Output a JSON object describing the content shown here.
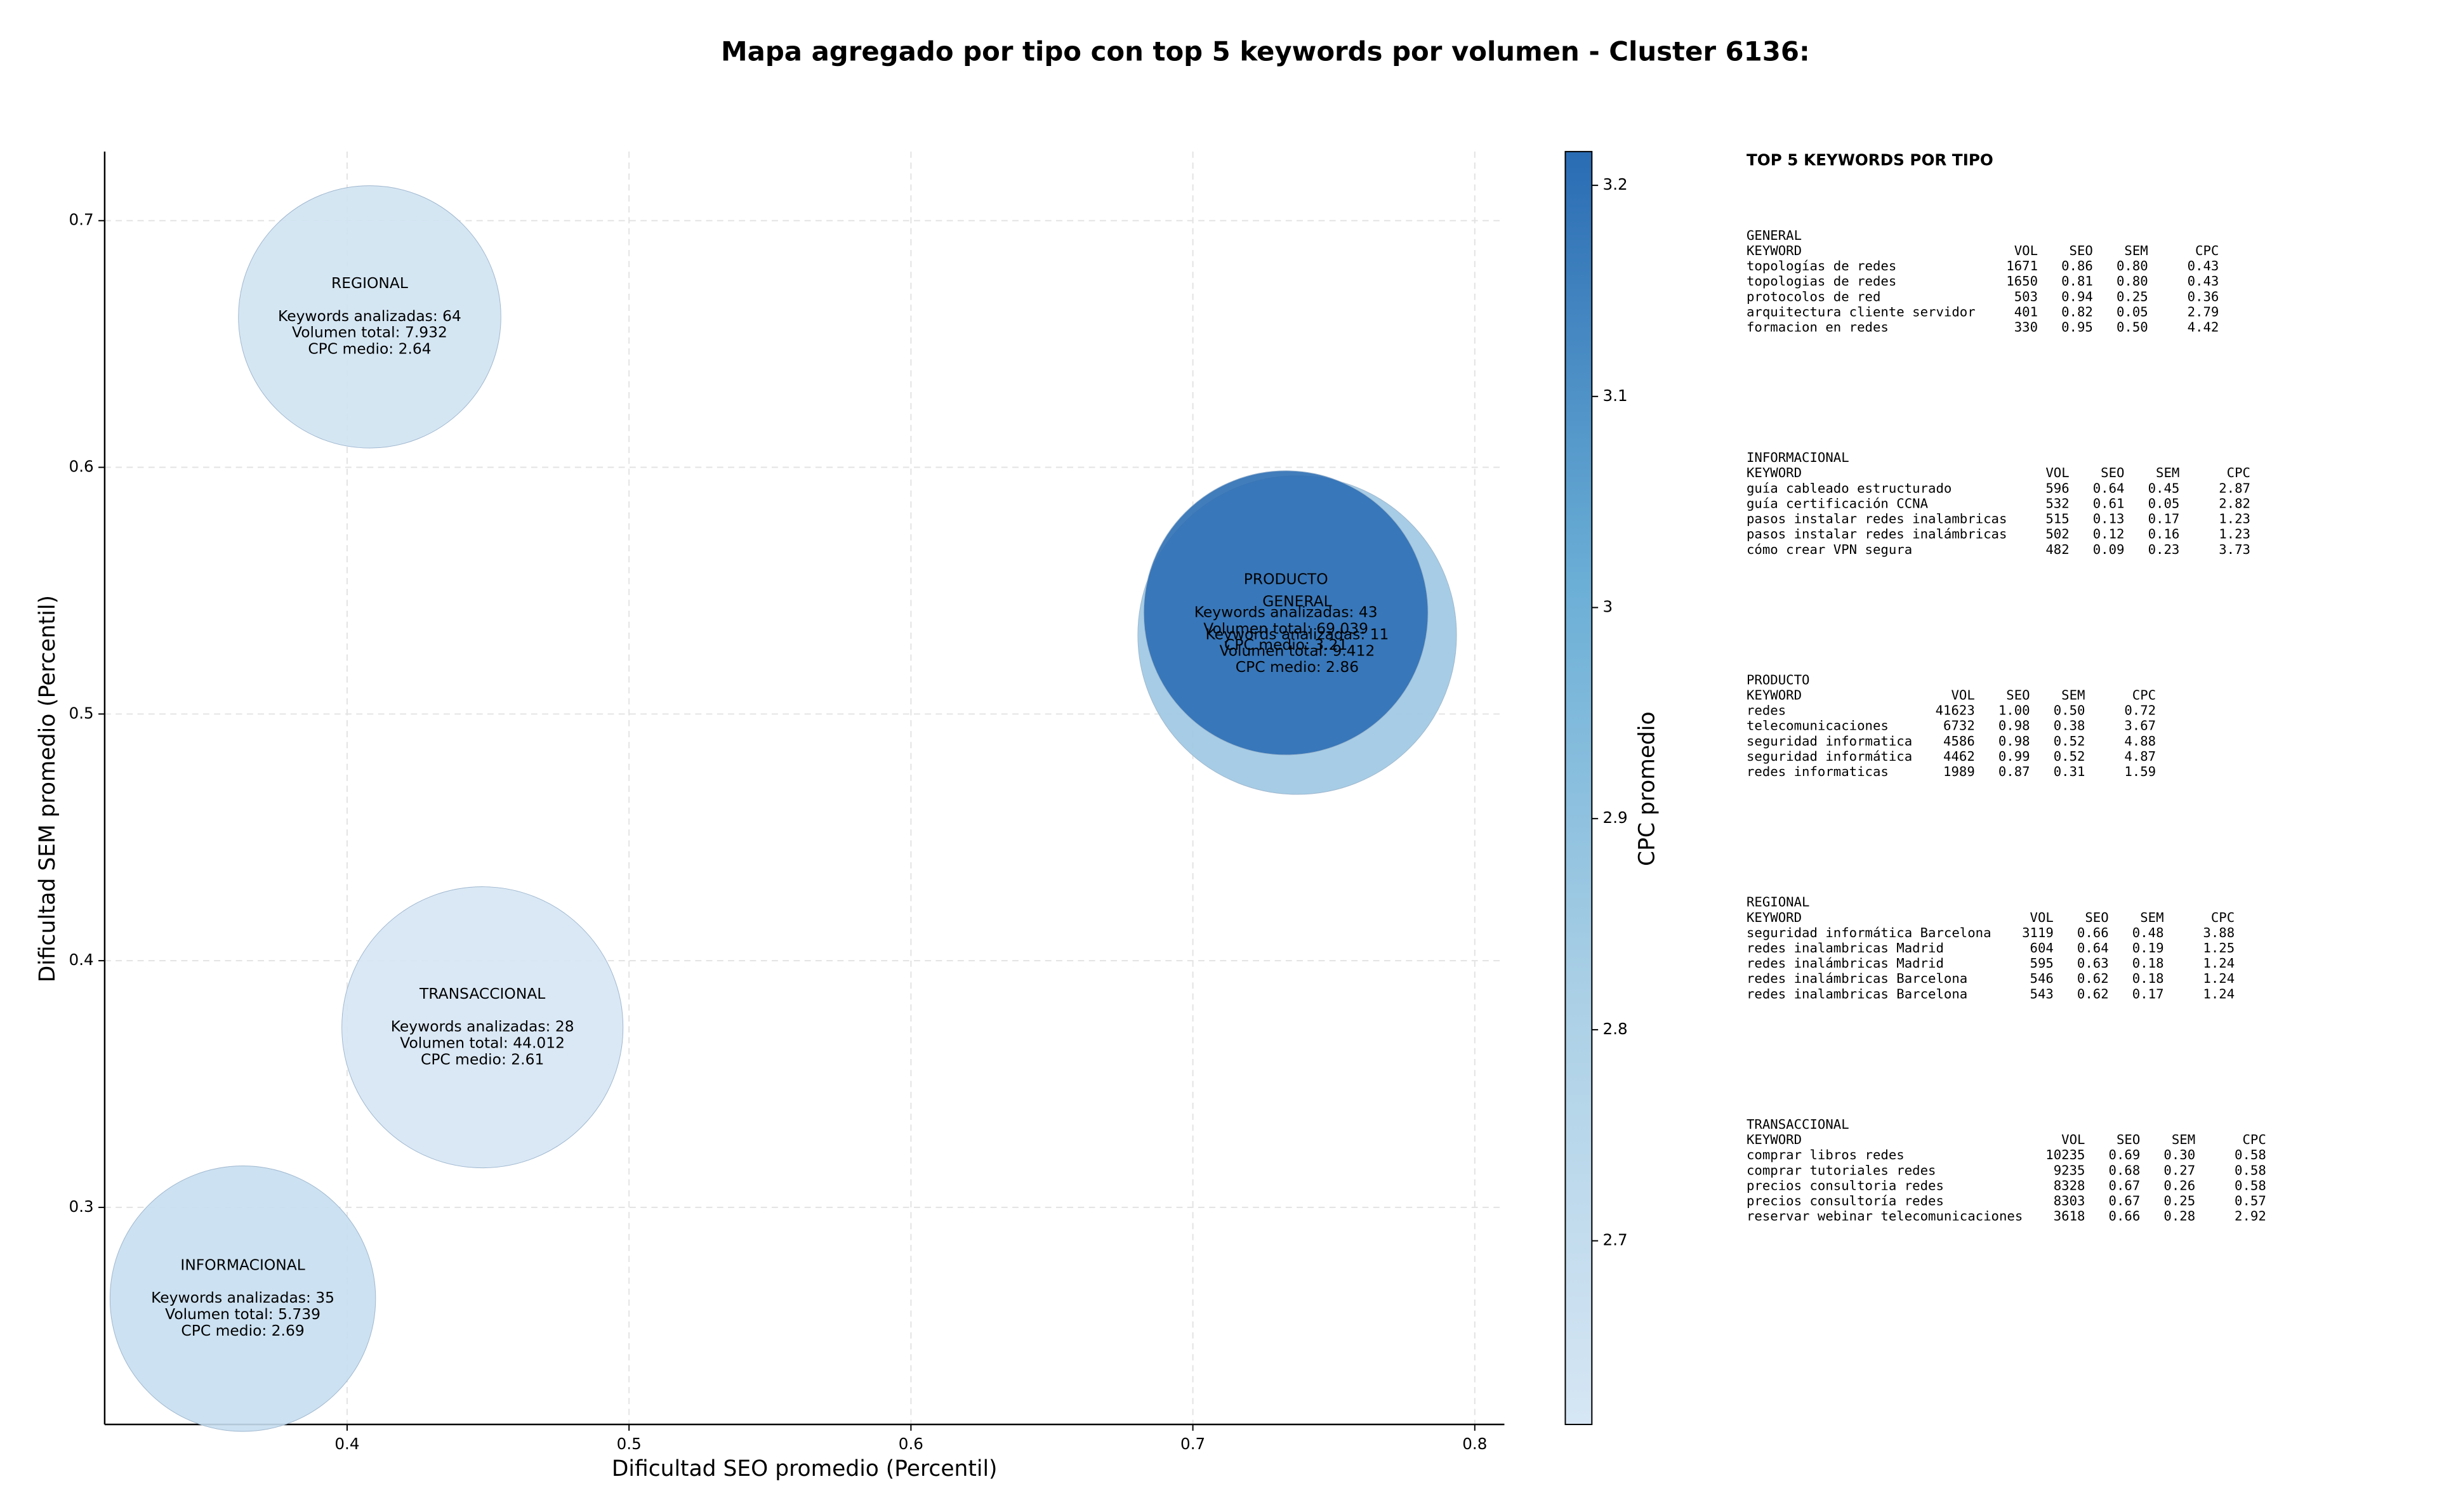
{
  "chart_data": {
    "type": "bubble",
    "title": "Mapa agregado por tipo con top 5 keywords por volumen - Cluster 6136:",
    "x_label": "Dificultad SEO promedio (Percentil)",
    "y_label": "Dificultad SEM promedio (Percentil)",
    "colorbar_label": "CPC promedio",
    "xlim": [
      0.314,
      0.8105
    ],
    "xticks": [
      0.4,
      0.5,
      0.6,
      0.7,
      0.8
    ],
    "ylim": [
      0.212,
      0.728
    ],
    "yticks": [
      0.3,
      0.4,
      0.5,
      0.6,
      0.7
    ],
    "clim": [
      2.613,
      3.216
    ],
    "cticks": [
      2.7,
      2.8,
      2.9,
      3.0,
      3.1,
      3.2
    ],
    "colormap": [
      "#d6e6f4",
      "#abd0e6",
      "#6aaed6",
      "#2a6cb3"
    ],
    "grid": true,
    "points": {
      "x": [
        0.737,
        0.363,
        0.733,
        0.408,
        0.448
      ],
      "y": [
        0.532,
        0.263,
        0.541,
        0.661,
        0.373
      ],
      "sizes": [
        102,
        85,
        91,
        84,
        90
      ],
      "cpc": [
        2.86,
        2.69,
        3.21,
        2.64,
        2.61
      ],
      "labels": [
        [
          "GENERAL",
          "Keywords analizadas: 11",
          "Volumen total: 9.412",
          "CPC medio: 2.86"
        ],
        [
          "INFORMACIONAL",
          "Keywords analizadas: 35",
          "Volumen total: 5.739",
          "CPC medio: 2.69"
        ],
        [
          "PRODUCTO",
          "Keywords analizadas: 43",
          "Volumen total: 69.039",
          "CPC medio: 3.21"
        ],
        [
          "REGIONAL",
          "Keywords analizadas: 64",
          "Volumen total: 7.932",
          "CPC medio: 2.64"
        ],
        [
          "TRANSACCIONAL",
          "Keywords analizadas: 28",
          "Volumen total: 44.012",
          "CPC medio: 2.61"
        ]
      ]
    },
    "panel": {
      "title": "TOP 5 KEYWORDS POR TIPO",
      "header": [
        "KEYWORD",
        "VOL",
        "SEO",
        "SEM",
        "CPC"
      ],
      "tables": [
        {
          "title": "GENERAL",
          "rows": [
            [
              "topologías de redes",
              "1671",
              "0.86",
              "0.80",
              "0.43"
            ],
            [
              "topologias de redes",
              "1650",
              "0.81",
              "0.80",
              "0.43"
            ],
            [
              "protocolos de red",
              "503",
              "0.94",
              "0.25",
              "0.36"
            ],
            [
              "arquitectura cliente servidor",
              "401",
              "0.82",
              "0.05",
              "2.79"
            ],
            [
              "formacion en redes",
              "330",
              "0.95",
              "0.50",
              "4.42"
            ]
          ]
        },
        {
          "title": "INFORMACIONAL",
          "rows": [
            [
              "guía cableado estructurado",
              "596",
              "0.64",
              "0.45",
              "2.87"
            ],
            [
              "guía certificación CCNA",
              "532",
              "0.61",
              "0.05",
              "2.82"
            ],
            [
              "pasos instalar redes inalambricas",
              "515",
              "0.13",
              "0.17",
              "1.23"
            ],
            [
              "pasos instalar redes inalámbricas",
              "502",
              "0.12",
              "0.16",
              "1.23"
            ],
            [
              "cómo crear VPN segura",
              "482",
              "0.09",
              "0.23",
              "3.73"
            ]
          ]
        },
        {
          "title": "PRODUCTO",
          "rows": [
            [
              "redes",
              "41623",
              "1.00",
              "0.50",
              "0.72"
            ],
            [
              "telecomunicaciones",
              "6732",
              "0.98",
              "0.38",
              "3.67"
            ],
            [
              "seguridad informatica",
              "4586",
              "0.98",
              "0.52",
              "4.88"
            ],
            [
              "seguridad informática",
              "4462",
              "0.99",
              "0.52",
              "4.87"
            ],
            [
              "redes informaticas",
              "1989",
              "0.87",
              "0.31",
              "1.59"
            ]
          ]
        },
        {
          "title": "REGIONAL",
          "rows": [
            [
              "seguridad informática Barcelona",
              "3119",
              "0.66",
              "0.48",
              "3.88"
            ],
            [
              "redes inalambricas Madrid",
              "604",
              "0.64",
              "0.19",
              "1.25"
            ],
            [
              "redes inalámbricas Madrid",
              "595",
              "0.63",
              "0.18",
              "1.24"
            ],
            [
              "redes inalámbricas Barcelona",
              "546",
              "0.62",
              "0.18",
              "1.24"
            ],
            [
              "redes inalambricas Barcelona",
              "543",
              "0.62",
              "0.17",
              "1.24"
            ]
          ]
        },
        {
          "title": "TRANSACCIONAL",
          "rows": [
            [
              "comprar libros redes",
              "10235",
              "0.69",
              "0.30",
              "0.58"
            ],
            [
              "comprar tutoriales redes",
              "9235",
              "0.68",
              "0.27",
              "0.58"
            ],
            [
              "precios consultoria redes",
              "8328",
              "0.67",
              "0.26",
              "0.58"
            ],
            [
              "precios consultoría redes",
              "8303",
              "0.67",
              "0.25",
              "0.57"
            ],
            [
              "reservar webinar telecomunicaciones",
              "3618",
              "0.66",
              "0.28",
              "2.92"
            ]
          ]
        }
      ]
    }
  }
}
